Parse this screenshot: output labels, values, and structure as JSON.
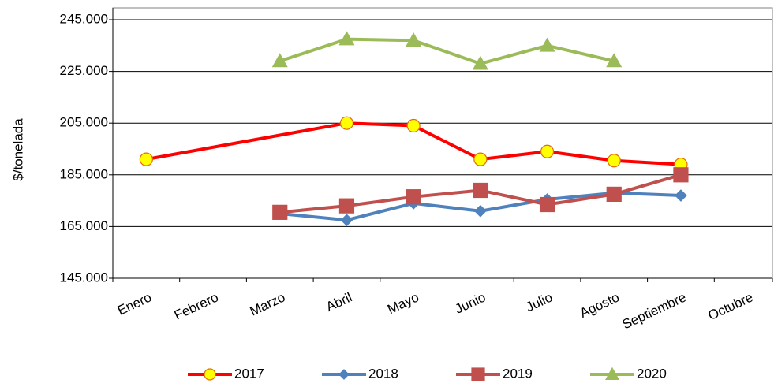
{
  "chart_data": {
    "type": "line",
    "y_label": "$/tonelada",
    "categories": [
      "Enero",
      "Febrero",
      "Marzo",
      "Abril",
      "Mayo",
      "Junio",
      "Julio",
      "Agosto",
      "Septiembre",
      "Octubre"
    ],
    "ylim": [
      145000,
      245000
    ],
    "yticks": [
      {
        "value": 145000,
        "label": "145.000"
      },
      {
        "value": 165000,
        "label": "165.000"
      },
      {
        "value": 185000,
        "label": "185.000"
      },
      {
        "value": 205000,
        "label": "205.000"
      },
      {
        "value": 225000,
        "label": "225.000"
      },
      {
        "value": 245000,
        "label": "245.000"
      }
    ],
    "grid": true,
    "span_gaps": true,
    "legend": "bottom",
    "series": [
      {
        "name": "2017",
        "color": "#ff0000",
        "marker": "circle",
        "marker_color": "#ffff00",
        "values": [
          191000,
          null,
          null,
          205000,
          204000,
          191000,
          194000,
          190500,
          189000,
          null
        ]
      },
      {
        "name": "2018",
        "color": "#4f81bd",
        "marker": "diamond",
        "marker_color": "#4f81bd",
        "values": [
          null,
          null,
          170000,
          167500,
          174000,
          171000,
          175500,
          178000,
          177000,
          null
        ]
      },
      {
        "name": "2019",
        "color": "#c0504d",
        "marker": "square",
        "marker_color": "#c0504d",
        "values": [
          null,
          null,
          170500,
          173000,
          176500,
          179000,
          173500,
          177500,
          185000,
          null
        ]
      },
      {
        "name": "2020",
        "color": "#9bbb59",
        "marker": "triangle",
        "marker_color": "#9bbb59",
        "values": [
          null,
          null,
          229000,
          237500,
          237000,
          228000,
          235000,
          229000,
          null,
          null
        ]
      }
    ]
  }
}
